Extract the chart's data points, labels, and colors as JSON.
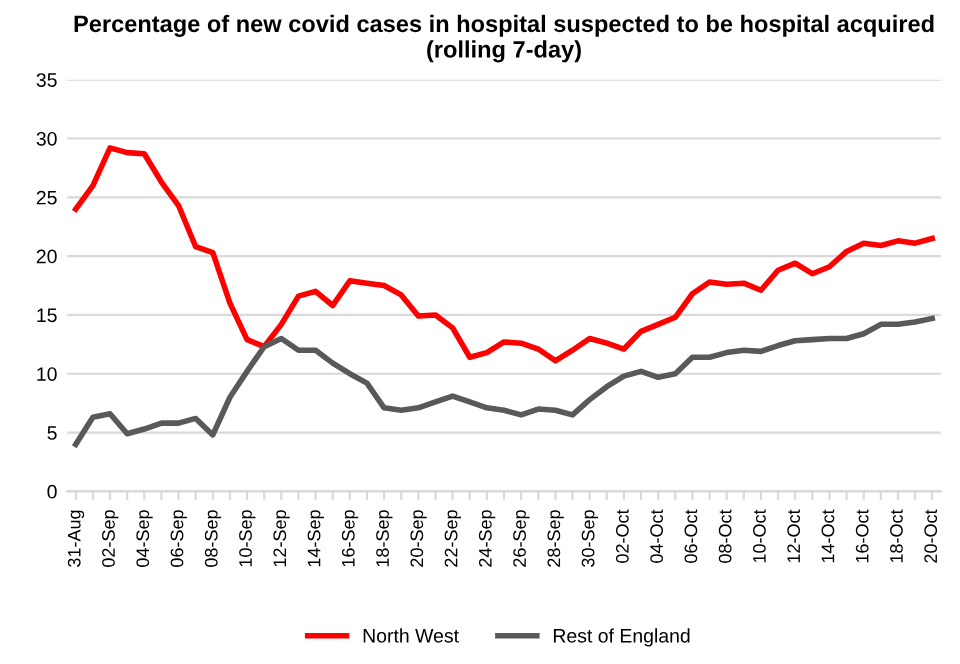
{
  "chart_data": {
    "type": "line",
    "title": "Percentage of new covid cases in hospital suspected to be hospital acquired\n(rolling 7-day)",
    "categories": [
      "31-Aug",
      null,
      "02-Sep",
      null,
      "04-Sep",
      null,
      "06-Sep",
      null,
      "08-Sep",
      null,
      "10-Sep",
      null,
      "12-Sep",
      null,
      "14-Sep",
      null,
      "16-Sep",
      null,
      "18-Sep",
      null,
      "20-Sep",
      null,
      "22-Sep",
      null,
      "24-Sep",
      null,
      "26-Sep",
      null,
      "28-Sep",
      null,
      "30-Sep",
      null,
      "02-Oct",
      null,
      "04-Oct",
      null,
      "06-Oct",
      null,
      "08-Oct",
      null,
      "10-Oct",
      null,
      "12-Oct",
      null,
      "14-Oct",
      null,
      "16-Oct",
      null,
      "18-Oct",
      null,
      "20-Oct"
    ],
    "series": [
      {
        "name": "North West",
        "color": "#ff0000",
        "values": [
          24,
          26,
          29.2,
          28.8,
          28.7,
          26.3,
          24.3,
          20.8,
          20.3,
          16,
          12.9,
          12.3,
          14.2,
          16.6,
          17,
          15.8,
          17.9,
          17.7,
          17.5,
          16.7,
          14.9,
          15,
          13.9,
          11.4,
          11.8,
          12.7,
          12.6,
          12.1,
          11.1,
          12,
          13,
          12.6,
          12.1,
          13.6,
          14.2,
          14.8,
          16.8,
          17.8,
          17.6,
          17.7,
          17.1,
          18.8,
          19.4,
          18.5,
          19.1,
          20.4,
          21.1,
          20.9,
          21.3,
          21.1,
          21.5
        ]
      },
      {
        "name": "Rest of England",
        "color": "#595959",
        "values": [
          4,
          6.3,
          6.6,
          4.9,
          5.3,
          5.8,
          5.8,
          6.2,
          4.8,
          8,
          10.2,
          12.3,
          13,
          12,
          12,
          10.9,
          10,
          9.2,
          7.1,
          6.9,
          7.1,
          7.6,
          8.1,
          7.6,
          7.1,
          6.9,
          6.5,
          7,
          6.9,
          6.5,
          7.8,
          8.9,
          9.8,
          10.2,
          9.7,
          10,
          11.4,
          11.4,
          11.8,
          12,
          11.9,
          12.4,
          12.8,
          12.9,
          13,
          13,
          13.4,
          14.2,
          14.2,
          14.4,
          14.7
        ]
      }
    ],
    "ylim": [
      0,
      35
    ],
    "yticks": [
      0,
      5,
      10,
      15,
      20,
      25,
      30,
      35
    ],
    "grid": "y",
    "legend": "bottom",
    "marker": "none",
    "line_style": "solid"
  }
}
